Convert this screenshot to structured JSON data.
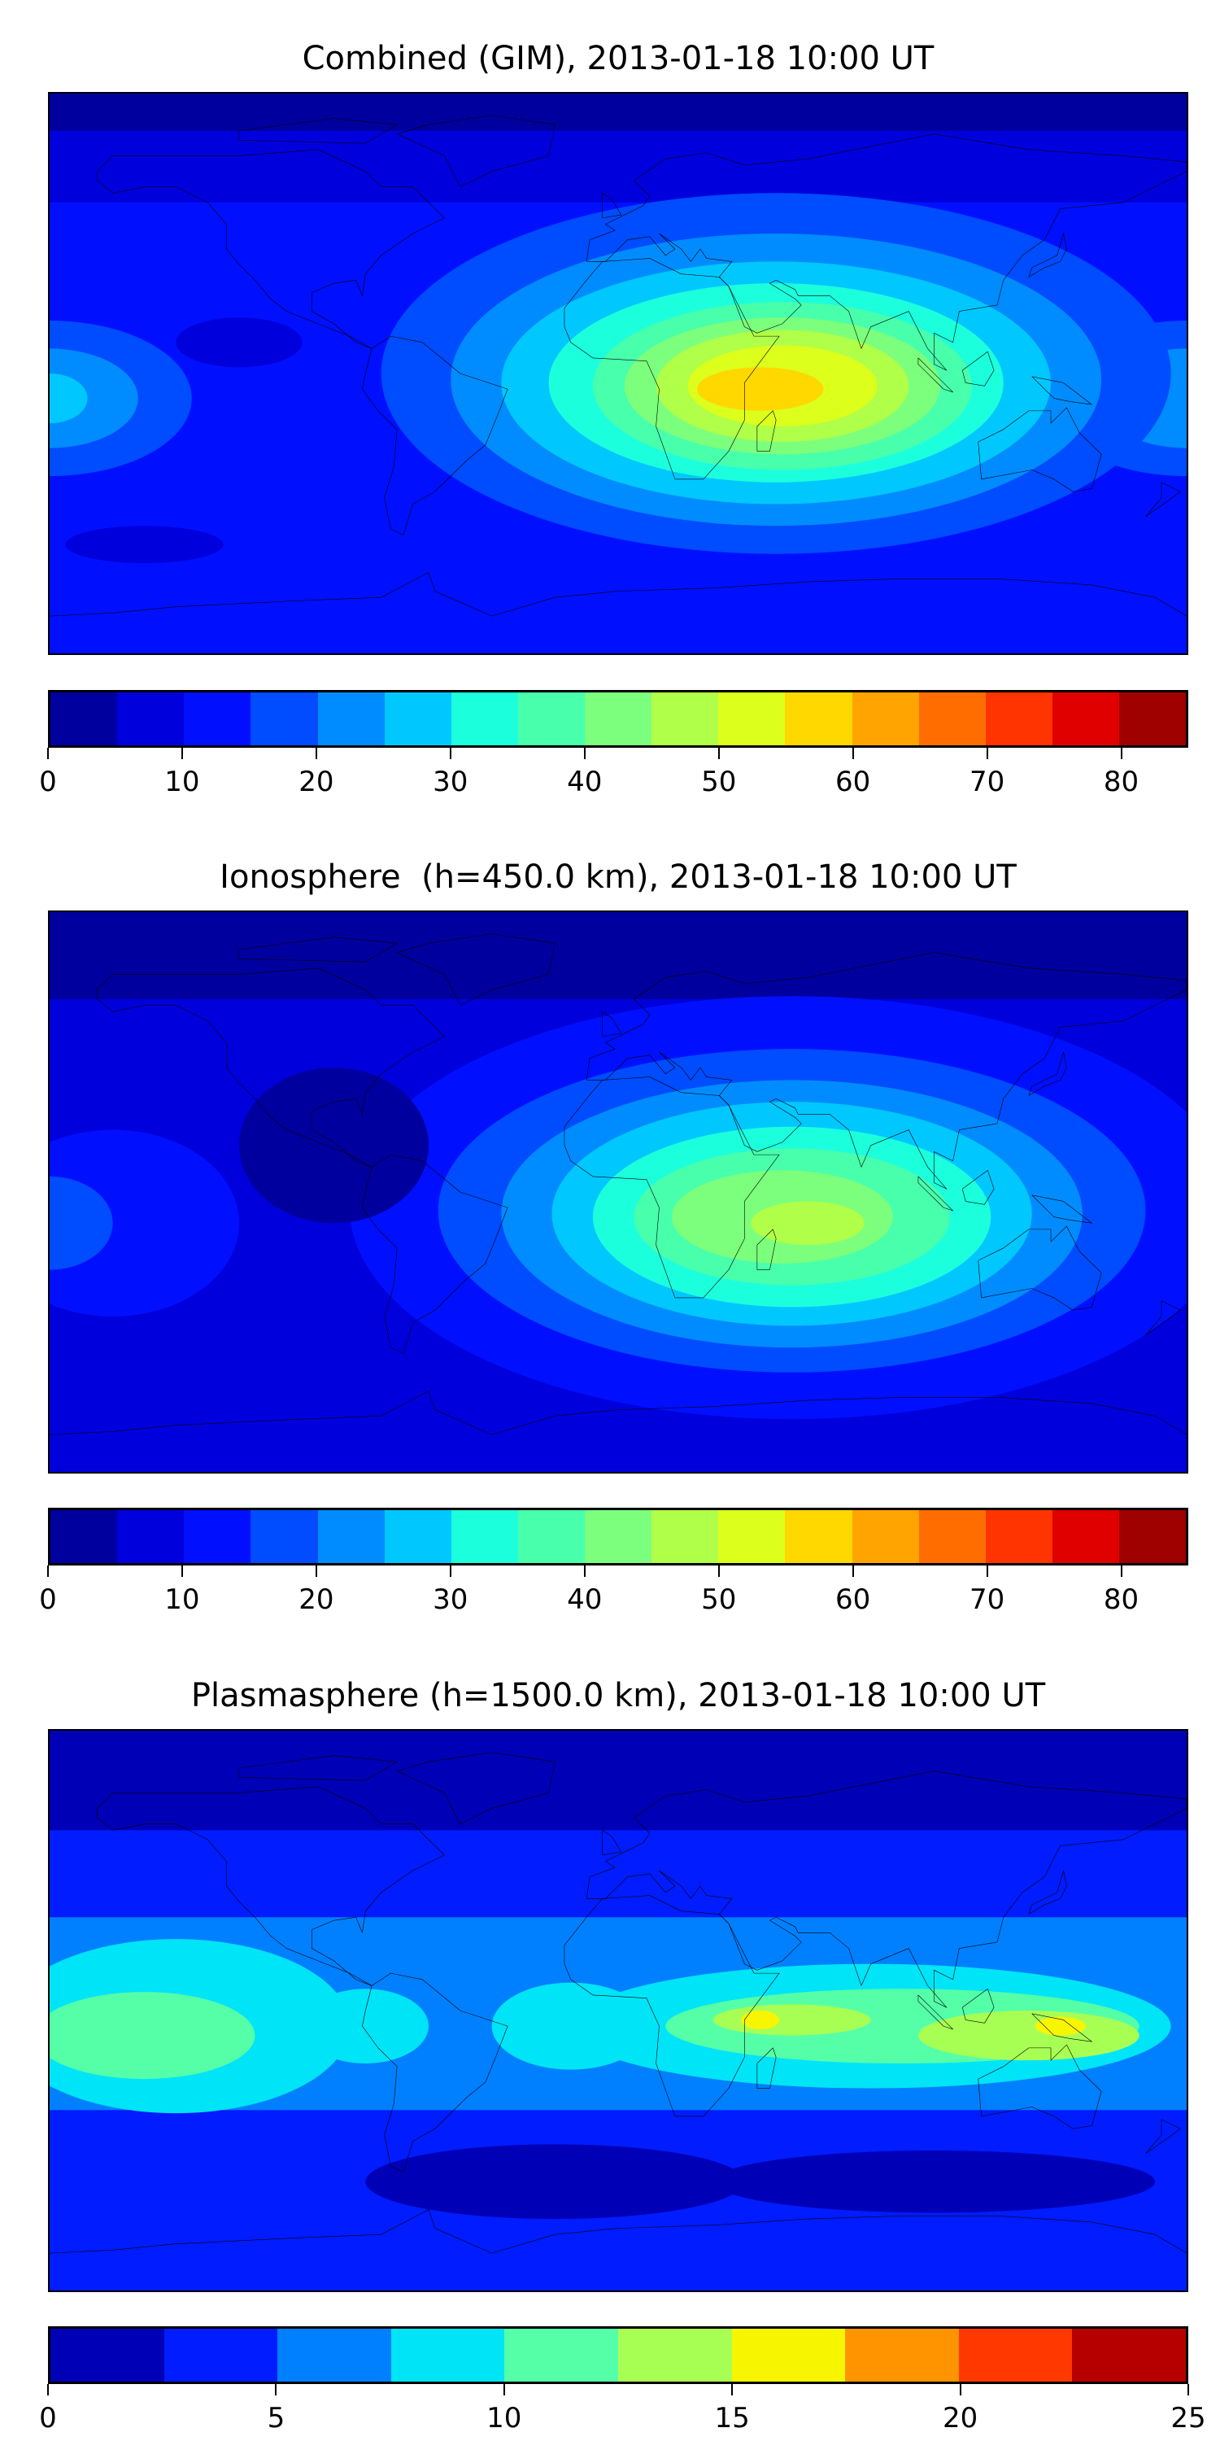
{
  "figures": [
    {
      "title": "Combined (GIM), 2013-01-18 10:00 UT",
      "colorbar": {
        "min": 0,
        "max": 85,
        "step": 5,
        "ticks": [
          "0",
          "10",
          "20",
          "30",
          "40",
          "50",
          "60",
          "70",
          "80"
        ],
        "tick_values": [
          0,
          10,
          20,
          30,
          40,
          50,
          60,
          70,
          80
        ],
        "colors": [
          "#00009f",
          "#0000dd",
          "#0010ff",
          "#004cff",
          "#008cff",
          "#00c8ff",
          "#1cffdc",
          "#48ffac",
          "#7cff7c",
          "#b0ff48",
          "#dcff1c",
          "#ffd800",
          "#ffa400",
          "#ff6c00",
          "#ff3400",
          "#e00000",
          "#9f0000"
        ]
      }
    },
    {
      "title": "Ionosphere  (h=450.0 km), 2013-01-18 10:00 UT",
      "colorbar": {
        "min": 0,
        "max": 85,
        "step": 5,
        "ticks": [
          "0",
          "10",
          "20",
          "30",
          "40",
          "50",
          "60",
          "70",
          "80"
        ],
        "tick_values": [
          0,
          10,
          20,
          30,
          40,
          50,
          60,
          70,
          80
        ],
        "colors": [
          "#00009f",
          "#0000dd",
          "#0010ff",
          "#004cff",
          "#008cff",
          "#00c8ff",
          "#1cffdc",
          "#48ffac",
          "#7cff7c",
          "#b0ff48",
          "#dcff1c",
          "#ffd800",
          "#ffa400",
          "#ff6c00",
          "#ff3400",
          "#e00000",
          "#9f0000"
        ]
      }
    },
    {
      "title": "Plasmasphere (h=1500.0 km), 2013-01-18 10:00 UT",
      "colorbar": {
        "min": 0,
        "max": 25,
        "step": 2.5,
        "ticks": [
          "0",
          "5",
          "10",
          "15",
          "20",
          "25"
        ],
        "tick_values": [
          0,
          5,
          10,
          15,
          20,
          25
        ],
        "colors": [
          "#0000b6",
          "#001cff",
          "#0080ff",
          "#00e4f8",
          "#54ffa8",
          "#a8ff54",
          "#f8f500",
          "#ff9400",
          "#ff3800",
          "#b60000"
        ]
      }
    }
  ]
}
